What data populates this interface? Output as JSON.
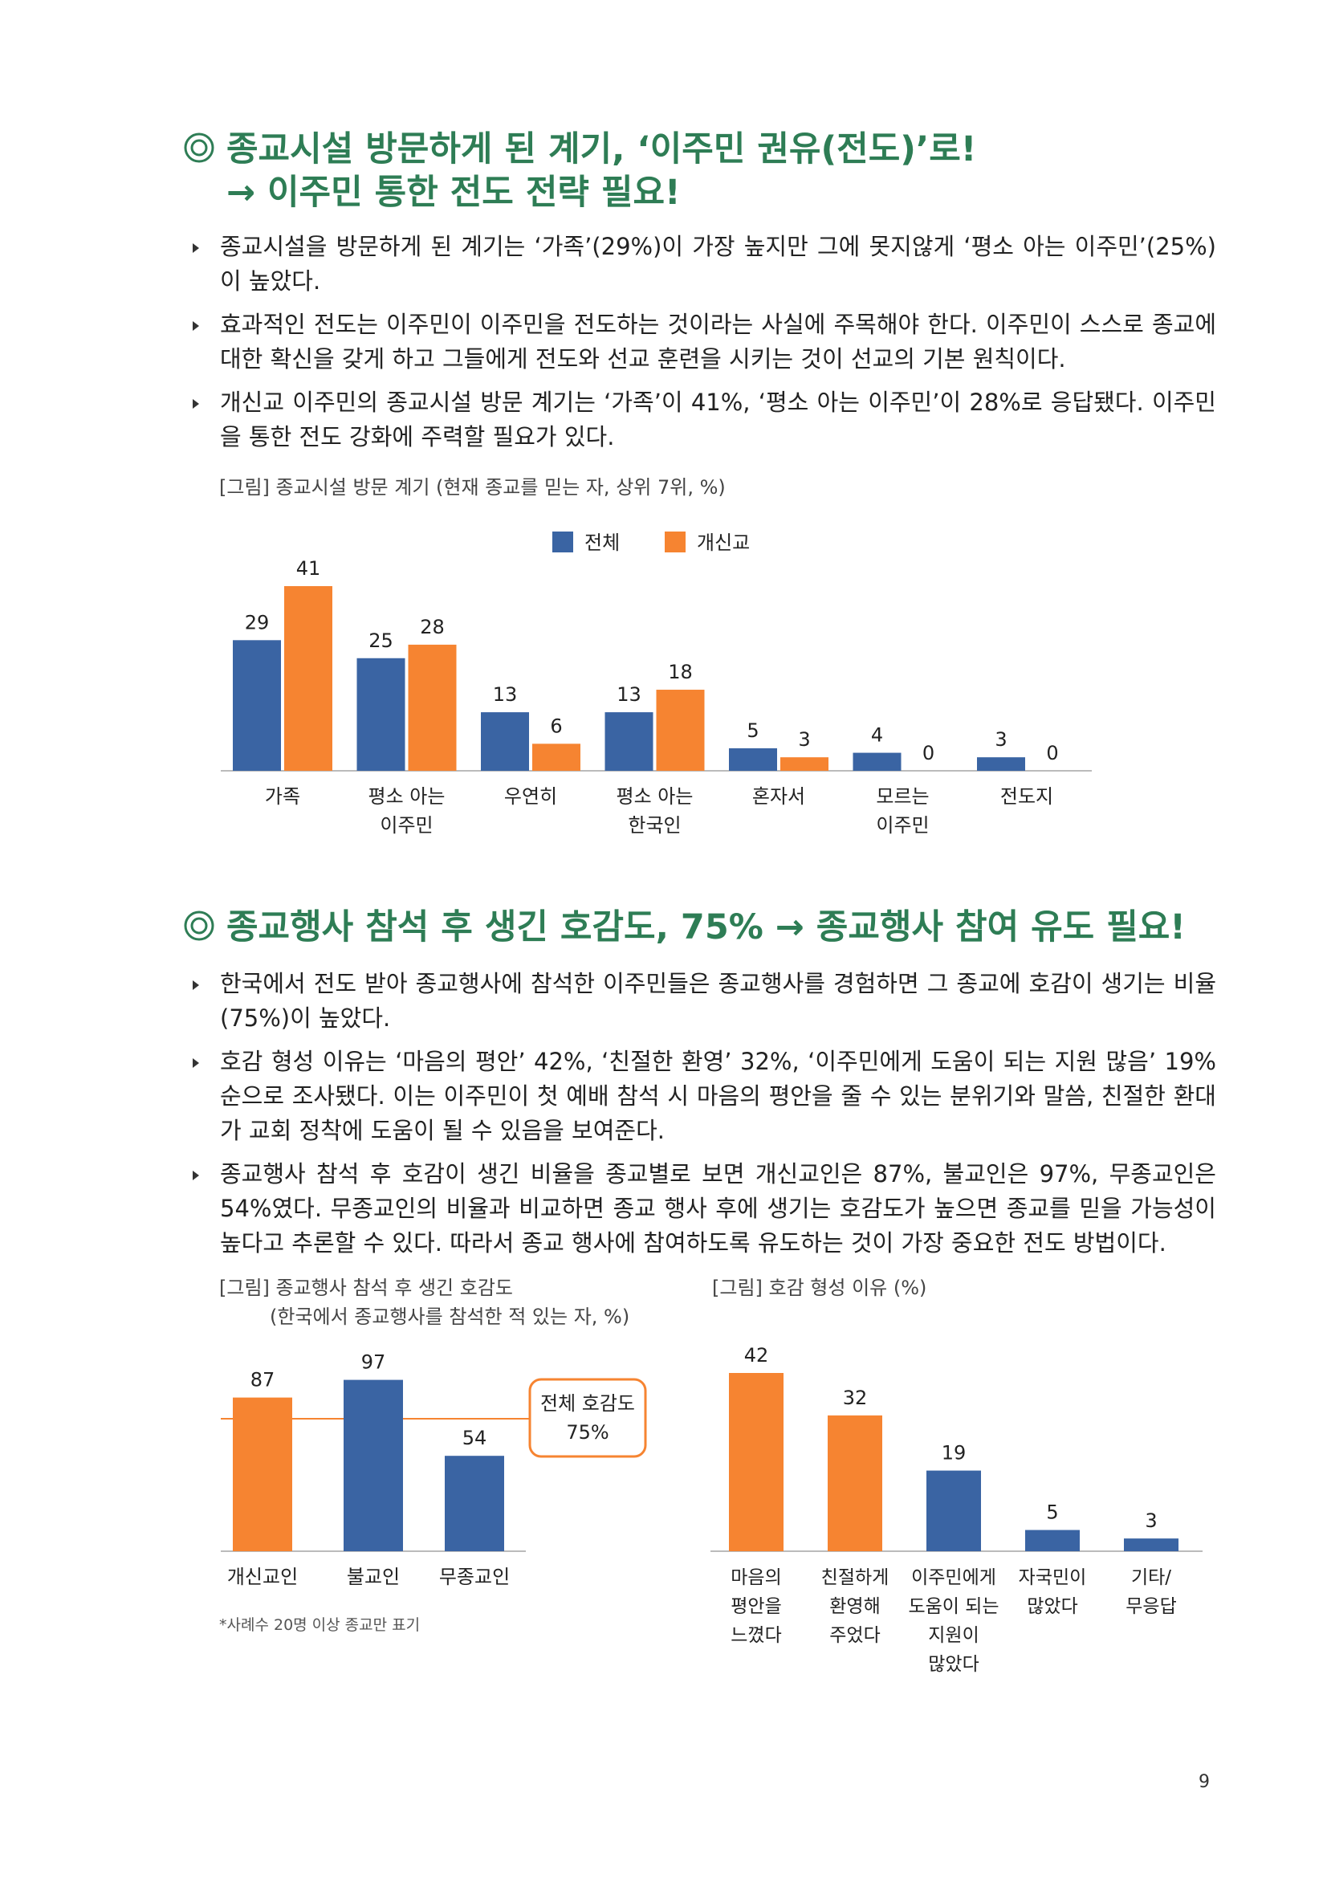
{
  "section1": {
    "heading_line1": "종교시설 방문하게 된 계기, ‘이주민 권유(전도)’로!",
    "heading_line2": "→ 이주민 통한 전도 전략 필요!",
    "bullets": [
      "종교시설을 방문하게 된 계기는 ‘가족’(29%)이 가장 높지만 그에 못지않게 ‘평소 아는 이주민’(25%)이 높았다.",
      "효과적인 전도는 이주민이 이주민을 전도하는 것이라는 사실에 주목해야 한다. 이주민이 스스로 종교에 대한 확신을 갖게 하고 그들에게 전도와 선교 훈련을 시키는 것이 선교의 기본 원칙이다.",
      "개신교 이주민의 종교시설 방문 계기는 ‘가족’이 41%, ‘평소 아는 이주민’이 28%로 응답됐다. 이주민을 통한 전도 강화에 주력할 필요가 있다."
    ],
    "figure_caption": "[그림] 종교시설 방문 계기 (현재 종교를 믿는 자, 상위 7위, %)"
  },
  "section2": {
    "heading": "종교행사 참석 후 생긴 호감도, 75% → 종교행사 참여 유도 필요!",
    "bullets": [
      "한국에서 전도 받아 종교행사에 참석한 이주민들은 종교행사를 경험하면 그 종교에 호감이 생기는 비율(75%)이 높았다.",
      "호감 형성 이유는 ‘마음의 평안’ 42%, ‘친절한 환영’ 32%, ‘이주민에게 도움이 되는 지원 많음’ 19% 순으로 조사됐다. 이는 이주민이 첫 예배 참석 시 마음의 평안을 줄 수 있는 분위기와 말씀, 친절한 환대가 교회 정착에 도움이 될 수 있음을 보여준다.",
      "종교행사 참석 후 호감이 생긴 비율을 종교별로 보면 개신교인은 87%, 불교인은 97%, 무종교인은 54%였다. 무종교인의 비율과 비교하면 종교 행사 후에 생기는 호감도가 높으면 종교를 믿을 가능성이 높다고 추론할 수 있다. 따라서 종교 행사에 참여하도록 유도하는 것이 가장 중요한 전도 방법이다."
    ],
    "fig2_caption_line1": "[그림] 종교행사 참석 후 생긴 호감도",
    "fig2_caption_line2": "(한국에서 종교행사를 참석한 적 있는 자, %)",
    "fig3_caption": "[그림] 호감 형성 이유 (%)",
    "footnote": "*사례수 20명 이상 종교만 표기",
    "reference_label_line1": "전체 호감도",
    "reference_label_line2": "75%"
  },
  "page_number": "9",
  "colors": {
    "blue": "#3a64a3",
    "orange": "#f68431",
    "heading_green": "#2e7d55"
  },
  "icons": {
    "heading_marker": "double-circle-icon",
    "bullet_marker": "triangle-bullet-icon"
  },
  "chart_data": [
    {
      "type": "bar",
      "categories": [
        [
          "가족"
        ],
        [
          "평소 아는",
          "이주민"
        ],
        [
          "우연히"
        ],
        [
          "평소 아는",
          "한국인"
        ],
        [
          "혼자서"
        ],
        [
          "모르는",
          "이주민"
        ],
        [
          "전도지"
        ]
      ],
      "series": [
        {
          "name": "전체",
          "values": [
            29,
            25,
            13,
            13,
            5,
            4,
            3
          ]
        },
        {
          "name": "개신교",
          "values": [
            41,
            28,
            6,
            18,
            3,
            0,
            0
          ]
        }
      ],
      "ylim": [
        0,
        45
      ],
      "legend": "top-center"
    },
    {
      "type": "bar",
      "categories": [
        [
          "개신교인"
        ],
        [
          "불교인"
        ],
        [
          "무종교인"
        ]
      ],
      "values": [
        87,
        97,
        54
      ],
      "bar_colors": [
        "orange",
        "blue",
        "blue"
      ],
      "reference_line": 75,
      "ylim": [
        0,
        100
      ]
    },
    {
      "type": "bar",
      "categories": [
        [
          "마음의",
          "평안을",
          "느꼈다"
        ],
        [
          "친절하게",
          "환영해",
          "주었다"
        ],
        [
          "이주민에게",
          "도움이 되는",
          "지원이",
          "많았다"
        ],
        [
          "자국민이",
          "많았다"
        ],
        [
          "기타/",
          "무응답"
        ]
      ],
      "values": [
        42,
        32,
        19,
        5,
        3
      ],
      "bar_colors": [
        "orange",
        "orange",
        "blue",
        "blue",
        "blue"
      ],
      "ylim": [
        0,
        45
      ]
    }
  ]
}
